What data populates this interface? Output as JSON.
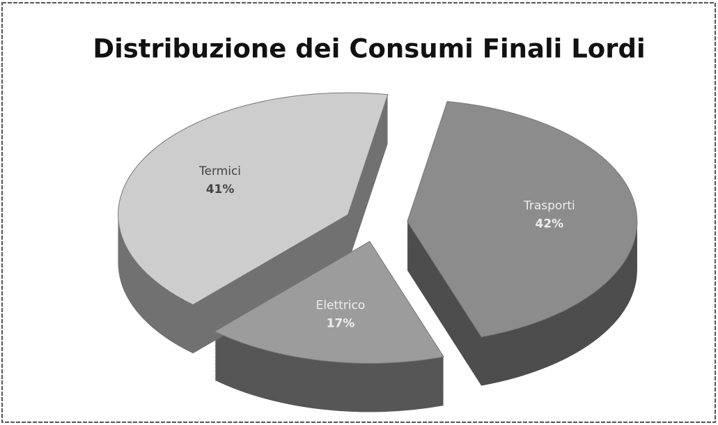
{
  "chart_data": {
    "type": "pie",
    "title": "Distribuzione dei Consumi Finali Lordi",
    "categories": [
      "Trasporti",
      "Elettrico",
      "Termici"
    ],
    "values": [
      42,
      17,
      41
    ],
    "value_labels": [
      "42%",
      "17%",
      "41%"
    ],
    "colors": [
      "#8c8c8c",
      "#9c9c9c",
      "#cdcdcd"
    ]
  }
}
